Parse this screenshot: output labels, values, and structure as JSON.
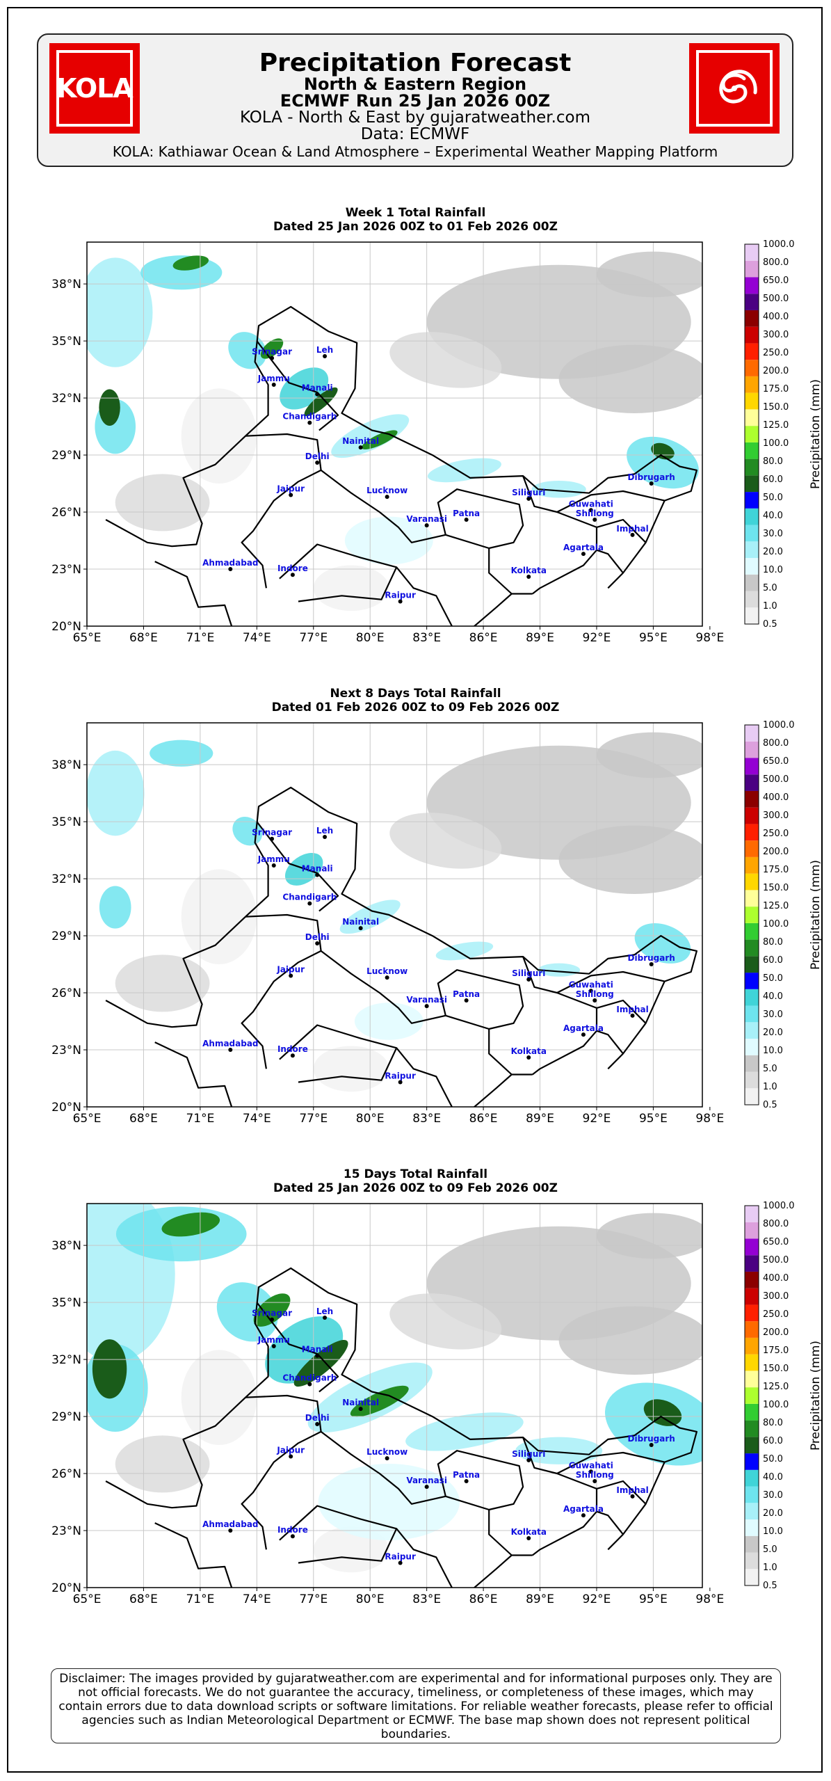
{
  "header": {
    "title": "Precipitation Forecast",
    "subtitle1": "North & Eastern Region",
    "subtitle2": "ECMWF Run 25 Jan 2026 00Z",
    "line3": "KOLA - North & East by gujaratweather.com",
    "line4": "Data: ECMWF",
    "line5": "KOLA: Kathiawar Ocean & Land Atmosphere – Experimental Weather Mapping Platform",
    "logo_left_text": "KOLA",
    "logo_left_icon": "kola-logo",
    "logo_right_icon": "spiral-cyclone-icon",
    "brand_color": "#e60000"
  },
  "axes": {
    "lon_ticks": [
      "65°E",
      "68°E",
      "71°E",
      "74°E",
      "77°E",
      "80°E",
      "83°E",
      "86°E",
      "89°E",
      "92°E",
      "95°E",
      "98°E"
    ],
    "lat_ticks": [
      "20°N",
      "23°N",
      "26°N",
      "29°N",
      "32°N",
      "35°N",
      "38°N"
    ],
    "lon_values": [
      65,
      68,
      71,
      74,
      77,
      80,
      83,
      86,
      89,
      92,
      95,
      98
    ],
    "lat_values": [
      20,
      23,
      26,
      29,
      32,
      35,
      38
    ],
    "lon_range": [
      65,
      97.6
    ],
    "lat_range": [
      20,
      40.2
    ],
    "grid": true
  },
  "colorbar": {
    "label": "Precipitation (mm)",
    "levels": [
      "0.5",
      "1.0",
      "5.0",
      "10.0",
      "20.0",
      "30.0",
      "40.0",
      "50.0",
      "60.0",
      "80.0",
      "100.0",
      "125.0",
      "150.0",
      "175.0",
      "200.0",
      "250.0",
      "300.0",
      "400.0",
      "500.0",
      "650.0",
      "800.0",
      "1000.0"
    ],
    "colors": [
      "#f2f2f2",
      "#dcdcdc",
      "#c8c8c8",
      "#e0fbff",
      "#a8f0f8",
      "#6ee4ee",
      "#40d4d8",
      "#0000ff",
      "#1a5c1a",
      "#228b22",
      "#32cd32",
      "#adff2f",
      "#ffff99",
      "#ffd700",
      "#ffa500",
      "#ff6a00",
      "#ff2000",
      "#cc0000",
      "#8b0000",
      "#4b0082",
      "#9400d3",
      "#dda0dd",
      "#e8ccf4"
    ]
  },
  "cities": [
    {
      "name": "Srinagar",
      "lon": 74.8,
      "lat": 34.1
    },
    {
      "name": "Leh",
      "lon": 77.6,
      "lat": 34.2
    },
    {
      "name": "Jammu",
      "lon": 74.9,
      "lat": 32.7
    },
    {
      "name": "Manali",
      "lon": 77.2,
      "lat": 32.2
    },
    {
      "name": "Chandigarh",
      "lon": 76.8,
      "lat": 30.7
    },
    {
      "name": "Nainital",
      "lon": 79.5,
      "lat": 29.4
    },
    {
      "name": "Delhi",
      "lon": 77.2,
      "lat": 28.6
    },
    {
      "name": "Jaipur",
      "lon": 75.8,
      "lat": 26.9
    },
    {
      "name": "Lucknow",
      "lon": 80.9,
      "lat": 26.8
    },
    {
      "name": "Varanasi",
      "lon": 83.0,
      "lat": 25.3
    },
    {
      "name": "Patna",
      "lon": 85.1,
      "lat": 25.6
    },
    {
      "name": "Siliguri",
      "lon": 88.4,
      "lat": 26.7
    },
    {
      "name": "Guwahati",
      "lon": 91.7,
      "lat": 26.1
    },
    {
      "name": "Shillong",
      "lon": 91.9,
      "lat": 25.6
    },
    {
      "name": "Dibrugarh",
      "lon": 94.9,
      "lat": 27.5
    },
    {
      "name": "Imphal",
      "lon": 93.9,
      "lat": 24.8
    },
    {
      "name": "Agartala",
      "lon": 91.3,
      "lat": 23.8
    },
    {
      "name": "Kolkata",
      "lon": 88.4,
      "lat": 22.6
    },
    {
      "name": "Ahmadabad",
      "lon": 72.6,
      "lat": 23.0
    },
    {
      "name": "Indore",
      "lon": 75.9,
      "lat": 22.7
    },
    {
      "name": "Raipur",
      "lon": 81.6,
      "lat": 21.3
    }
  ],
  "panels": [
    {
      "title": "Week 1 Total Rainfall",
      "dates": "Dated 25 Jan 2026 00Z to 01 Feb 2026 00Z",
      "intensity": 1.0
    },
    {
      "title": "Next 8 Days Total Rainfall",
      "dates": "Dated 01 Feb 2026 00Z to 09 Feb 2026 00Z",
      "intensity": 0.6
    },
    {
      "title": "15 Days Total Rainfall",
      "dates": "Dated 25 Jan 2026 00Z to 09 Feb 2026 00Z",
      "intensity": 1.6
    }
  ],
  "disclaimer": "Disclaimer: The images provided by gujaratweather.com are experimental and for informational purposes only. They are not official forecasts. We do not guarantee the accuracy, timeliness, or completeness of these images, which may contain errors due to data download scripts or software limitations. For reliable weather forecasts, please refer to official agencies such as Indian Meteorological Department or ECMWF. The base map shown does not represent political boundaries."
}
